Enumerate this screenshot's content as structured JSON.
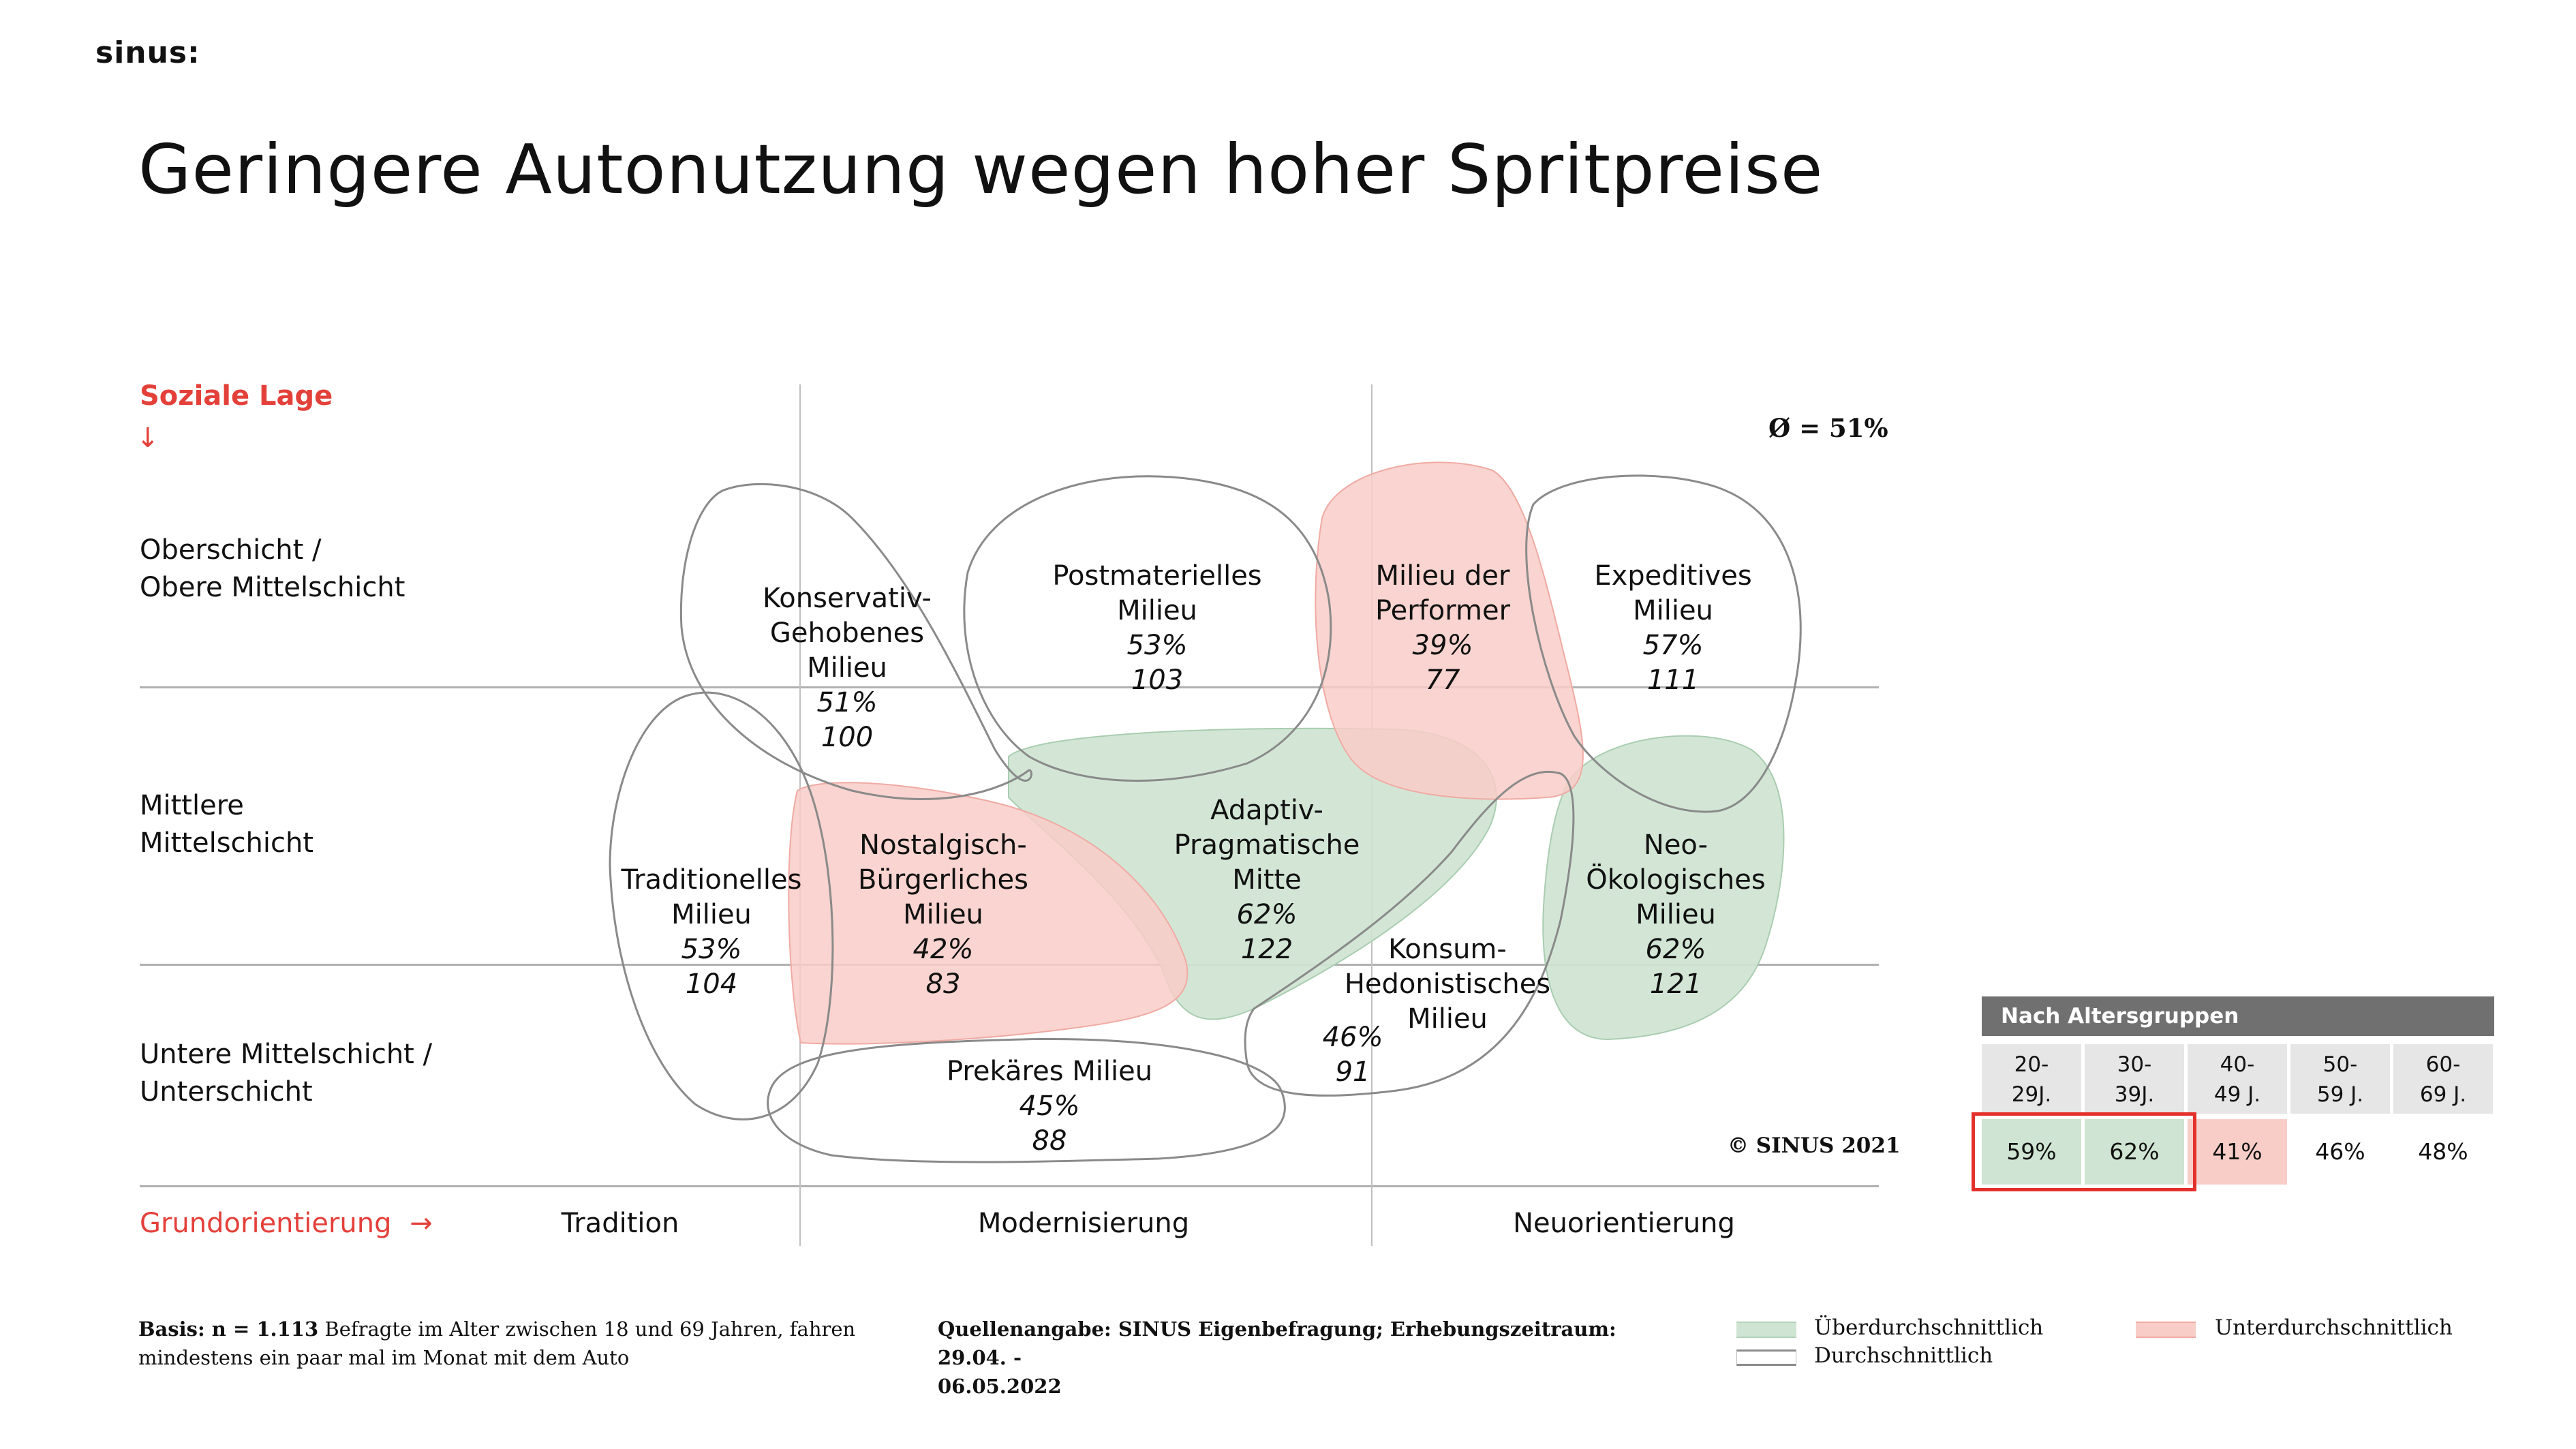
{
  "logo": "sinus:",
  "title": "Geringere Autonutzung wegen hoher Spritpreise",
  "average": "Ø = 51%",
  "copyright": "© SINUS 2021",
  "colors": {
    "above": "#cfe4d2",
    "below": "#f8cdc8",
    "accent": "#e4403a",
    "neutral_outline": "#8a8a8a"
  },
  "chart_data": {
    "type": "milieu-map",
    "y_axis": {
      "label": "Soziale Lage",
      "arrow": "↓",
      "levels": [
        "Oberschicht /\nObere Mittelschicht",
        "Mittlere\nMittelschicht",
        "Untere Mittelschicht /\nUnterschicht"
      ]
    },
    "x_axis": {
      "label": "Grundorientierung",
      "arrow": "→",
      "levels": [
        "Tradition",
        "Modernisierung",
        "Neuorientierung"
      ]
    },
    "average_percent": 51,
    "milieus": [
      {
        "name_lines": [
          "Konservativ-",
          "Gehobenes",
          "Milieu"
        ],
        "percent": "51%",
        "index": "100",
        "status": "average"
      },
      {
        "name_lines": [
          "Postmaterielles",
          "Milieu"
        ],
        "percent": "53%",
        "index": "103",
        "status": "average"
      },
      {
        "name_lines": [
          "Milieu der",
          "Performer"
        ],
        "percent": "39%",
        "index": "77",
        "status": "below"
      },
      {
        "name_lines": [
          "Expeditives",
          "Milieu"
        ],
        "percent": "57%",
        "index": "111",
        "status": "average"
      },
      {
        "name_lines": [
          "Traditionelles",
          "Milieu"
        ],
        "percent": "53%",
        "index": "104",
        "status": "average"
      },
      {
        "name_lines": [
          "Nostalgisch-",
          "Bürgerliches",
          "Milieu"
        ],
        "percent": "42%",
        "index": "83",
        "status": "below"
      },
      {
        "name_lines": [
          "Adaptiv-",
          "Pragmatische",
          "Mitte"
        ],
        "percent": "62%",
        "index": "122",
        "status": "above"
      },
      {
        "name_lines": [
          "Konsum-",
          "Hedonistisches",
          "Milieu"
        ],
        "percent": "46%",
        "index": "91",
        "status": "average"
      },
      {
        "name_lines": [
          "Neo-",
          "Ökologisches",
          "Milieu"
        ],
        "percent": "62%",
        "index": "121",
        "status": "above"
      },
      {
        "name_lines": [
          "Prekäres Milieu"
        ],
        "percent": "45%",
        "index": "88",
        "status": "average"
      }
    ]
  },
  "age_groups": {
    "header": "Nach Altersgruppen",
    "groups": [
      {
        "label_lines": [
          "20-",
          "29J."
        ],
        "value": "59%",
        "status": "above"
      },
      {
        "label_lines": [
          "30-",
          "39J."
        ],
        "value": "62%",
        "status": "above"
      },
      {
        "label_lines": [
          "40-",
          "49 J."
        ],
        "value": "41%",
        "status": "below"
      },
      {
        "label_lines": [
          "50-",
          "59 J."
        ],
        "value": "46%",
        "status": "average"
      },
      {
        "label_lines": [
          "60-",
          "69 J."
        ],
        "value": "48%",
        "status": "average"
      }
    ]
  },
  "footer": {
    "basis_bold": "Basis: n = 1.113",
    "basis_text": " Befragte im Alter zwischen  18 und 69 Jahren, fahren",
    "basis_text2": "mindestens ein paar mal im Monat mit dem Auto",
    "source_line1": "Quellenangabe: SINUS Eigenbefragung; Erhebungszeitraum: 29.04. -",
    "source_line2": "06.05.2022"
  },
  "legend": {
    "above": "Überdurchschnittlich",
    "below": "Unterdurchschnittlich",
    "average": "Durchschnittlich"
  }
}
